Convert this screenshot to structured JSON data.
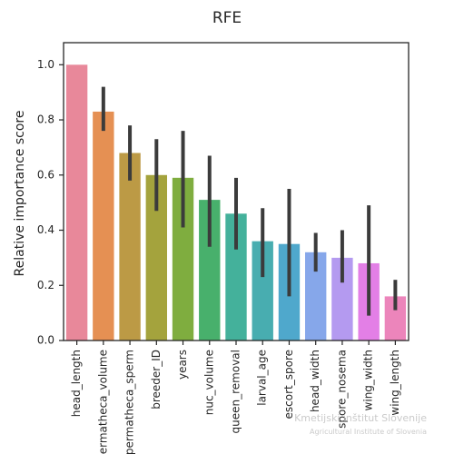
{
  "chart_data": {
    "type": "bar",
    "title": "RFE",
    "xlabel": "",
    "ylabel": "Relative importance score",
    "ylim": [
      0,
      1.08
    ],
    "yticks": [
      "0.0",
      "0.2",
      "0.4",
      "0.6",
      "0.8",
      "1.0"
    ],
    "grid": false,
    "categories": [
      "head_length",
      "spermatheca_volume",
      "spermatheca_sperm",
      "breeder_ID",
      "years",
      "nuc_volume",
      "queen_removal",
      "larval_age",
      "escort_spore",
      "head_width",
      "spore_nosema",
      "wing_width",
      "wing_length"
    ],
    "values": [
      1.0,
      0.83,
      0.68,
      0.6,
      0.59,
      0.51,
      0.46,
      0.36,
      0.35,
      0.32,
      0.3,
      0.28,
      0.16
    ],
    "error_low": [
      1.0,
      0.76,
      0.58,
      0.47,
      0.41,
      0.34,
      0.33,
      0.23,
      0.16,
      0.25,
      0.21,
      0.09,
      0.11
    ],
    "error_high": [
      1.0,
      0.92,
      0.78,
      0.73,
      0.76,
      0.67,
      0.59,
      0.48,
      0.55,
      0.39,
      0.4,
      0.49,
      0.22
    ],
    "colors": [
      "#e8889a",
      "#e59053",
      "#bc9a45",
      "#a4a33d",
      "#7fad3f",
      "#48b06c",
      "#44b19b",
      "#48adb0",
      "#4fa8cc",
      "#86a7ea",
      "#b49af0",
      "#e37fe6",
      "#ec85bb"
    ]
  },
  "watermark": {
    "text": "Kmetijski inštitut Slovenije",
    "subtext": "Agricultural Institute of Slovenia"
  }
}
